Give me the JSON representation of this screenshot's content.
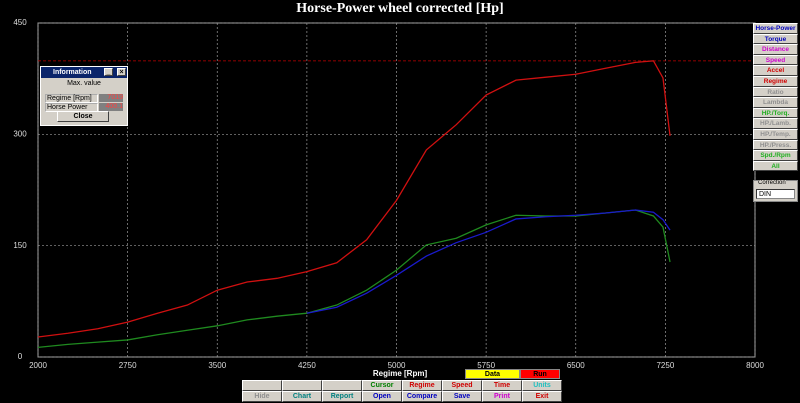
{
  "chart_data": {
    "type": "line",
    "title": "Horse-Power wheel corrected [Hp]",
    "x_label": "Regime [Rpm]",
    "x": [
      2000,
      2250,
      2500,
      2750,
      3000,
      3250,
      3500,
      3750,
      4000,
      4250,
      4500,
      4750,
      5000,
      5250,
      5500,
      5750,
      6000,
      6250,
      6500,
      6750,
      7000,
      7150,
      7230,
      7289
    ],
    "series": [
      {
        "color": "#d01010",
        "values": [
          27,
          32,
          38,
          47,
          59,
          70,
          90,
          101,
          106,
          115,
          127,
          158,
          211,
          279,
          313,
          353,
          373,
          377,
          381,
          389,
          397,
          399,
          376,
          298
        ]
      },
      {
        "color": "#1f8a1f",
        "values": [
          13,
          17,
          20,
          23,
          30,
          36,
          42,
          50,
          55,
          59,
          70,
          90,
          117,
          151,
          160,
          178,
          191,
          190,
          190,
          194,
          198,
          190,
          175,
          128
        ]
      },
      {
        "color": "#1a1acc",
        "values": [
          null,
          null,
          null,
          null,
          null,
          null,
          null,
          null,
          null,
          59,
          67,
          86,
          110,
          136,
          154,
          168,
          186,
          189,
          191,
          194,
          198,
          195,
          185,
          171
        ]
      }
    ],
    "xlim": [
      2000,
      8000
    ],
    "xticks": [
      2000,
      2750,
      3500,
      4250,
      5000,
      5750,
      6500,
      7250,
      8000
    ],
    "ylim": [
      0,
      450
    ],
    "yticks": [
      0,
      150,
      300,
      450
    ],
    "grid": true,
    "reference_line": {
      "value": 399,
      "color": "#c00000"
    }
  },
  "info_window": {
    "title": "Information",
    "heading": "Max. value",
    "rows": [
      [
        "Regime [Rpm]",
        "7019"
      ],
      [
        "Horse Power",
        "400.1"
      ]
    ],
    "button": "Close"
  },
  "side_buttons": [
    {
      "label": "Horse-Power",
      "color": "#0000c0"
    },
    {
      "label": "Torque",
      "color": "#0000c0"
    },
    {
      "label": "Distance",
      "color": "#d000d0"
    },
    {
      "label": "Speed",
      "color": "#d000d0"
    },
    {
      "label": "Accel",
      "color": "#d00000"
    },
    {
      "label": "Regime",
      "color": "#d00000"
    },
    {
      "label": "Ratio",
      "color": "#909090"
    },
    {
      "label": "Lambda",
      "color": "#909090"
    },
    {
      "label": "HP./Torq.",
      "color": "#20b020"
    },
    {
      "label": "HP./Lamb.",
      "color": "#909090"
    },
    {
      "label": "HP./Temp.",
      "color": "#909090"
    },
    {
      "label": "HP./Press.",
      "color": "#909090"
    },
    {
      "label": "Spd./Rpm",
      "color": "#20b020"
    },
    {
      "label": "All",
      "color": "#20b020"
    }
  ],
  "correction": {
    "label": "Correction",
    "value": "DIN"
  },
  "run_labels": [
    {
      "label": "Data",
      "color": "#ffff00"
    },
    {
      "label": "Run",
      "color": "#ff0000"
    }
  ],
  "bottom_buttons": [
    [
      {
        "label": "Cursor",
        "color": "#008000"
      },
      {
        "label": "Regime",
        "color": "#d00000"
      },
      {
        "label": "Speed",
        "color": "#d00000"
      },
      {
        "label": "Time",
        "color": "#d00000"
      },
      {
        "label": "Units",
        "color": "#20c0c0"
      }
    ],
    [
      {
        "label": "Hide",
        "color": "#909090"
      },
      {
        "label": "Chart",
        "color": "#008080"
      },
      {
        "label": "Report",
        "color": "#008080"
      },
      {
        "label": "Open",
        "color": "#0000c0"
      },
      {
        "label": "Compare",
        "color": "#0000c0"
      },
      {
        "label": "Save",
        "color": "#0000c0"
      },
      {
        "label": "Print",
        "color": "#d000d0"
      },
      {
        "label": "Exit",
        "color": "#d00000"
      }
    ]
  ]
}
